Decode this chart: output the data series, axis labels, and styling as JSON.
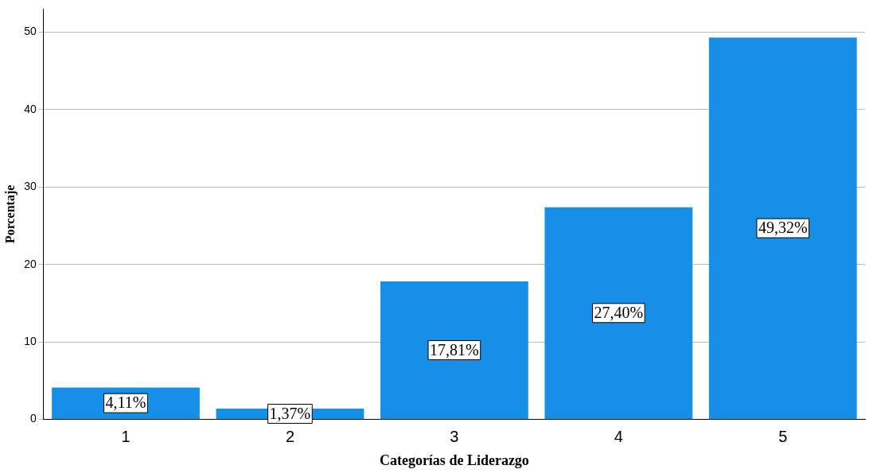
{
  "chart_data": {
    "type": "bar",
    "xlabel": "Categorías de Liderazgo",
    "ylabel": "Porcentaje",
    "categories": [
      "1",
      "2",
      "3",
      "4",
      "5"
    ],
    "values": [
      4.11,
      1.37,
      17.81,
      27.4,
      49.32
    ],
    "value_labels": [
      "4,11%",
      "1,37%",
      "17,81%",
      "27,40%",
      "49,32%"
    ],
    "color": "#1590e6",
    "ylim": [
      0,
      53
    ],
    "yticks": [
      0,
      10,
      20,
      30,
      40,
      50
    ],
    "grid": "y"
  }
}
